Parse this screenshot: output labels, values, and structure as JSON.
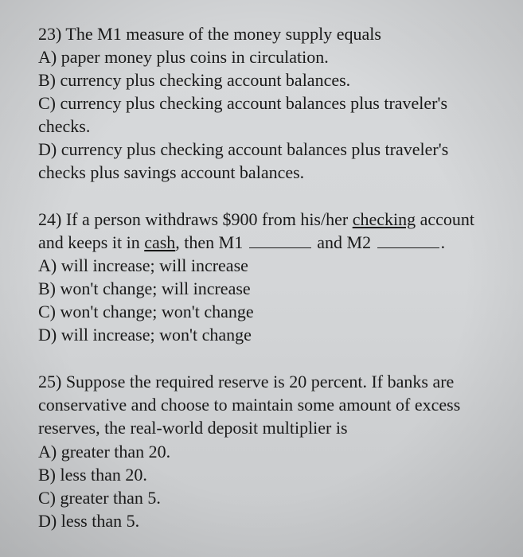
{
  "q23": {
    "stem": "23) The M1 measure of the money supply equals",
    "optA": "A) paper money plus coins in circulation.",
    "optB": "B) currency plus checking account balances.",
    "optC_l1": "C) currency plus checking account balances plus traveler's",
    "optC_l2": "checks.",
    "optD_l1": "D) currency plus checking account balances plus traveler's",
    "optD_l2": "checks plus savings account balances."
  },
  "q24": {
    "stem_pre": "24) If a person withdraws $900 from his/her ",
    "stem_u1": "checking",
    "stem_mid1": " account",
    "stem_l2a": "and keeps it in ",
    "stem_u2": "cash",
    "stem_l2b": ", then M1 ",
    "stem_l2c": " and M2 ",
    "stem_l2d": ".",
    "optA": "A)  will increase; will increase",
    "optB": "B)  won't change; will increase",
    "optC": "C)  won't change; won't change",
    "optD": "D)  will increase; won't change"
  },
  "q25": {
    "stem_l1": "25) Suppose the required reserve is 20 percent.  If banks are",
    "stem_l2": "conservative and choose to maintain some amount of excess",
    "stem_l3": "reserves, the real-world deposit multiplier is",
    "optA": "A) greater than 20.",
    "optB": "B) less than 20.",
    "optC": "C) greater than 5.",
    "optD": "D) less than 5."
  }
}
